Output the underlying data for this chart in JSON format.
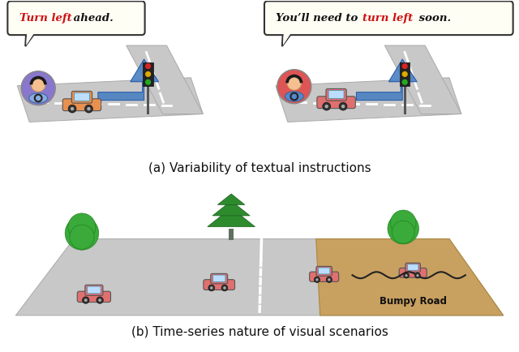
{
  "bg_color": "#ffffff",
  "fig_width": 6.4,
  "fig_height": 4.34,
  "caption_a": "(a) Variability of textual instructions",
  "caption_b": "(b) Time-series nature of visual scenarios",
  "speech1_red": "Turn left",
  "speech1_black": " ahead.",
  "speech2_black1": "You’ll need to ",
  "speech2_red": "turn left",
  "speech2_black2": " soon.",
  "bumpy_label": "Bumpy Road",
  "road_color": "#c8c8c8",
  "road_edge": "#aaaaaa",
  "bumpy_color": "#c8a060",
  "tree_green": "#3aaa3a",
  "tree_dark": "#1a7a1a",
  "pine_green": "#2d8b2d",
  "pine_dark": "#1a5a1a",
  "trunk_color": "#8B4513",
  "car_red": "#e07070",
  "car_orange": "#e89050",
  "arrow_color": "#4a80c0",
  "arrow_edge": "#2255aa",
  "speech_bg": "#fffef5",
  "speech_border": "#333333",
  "tl_pole": "#555555",
  "tl_box": "#222222",
  "tl_red": "#dd2222",
  "tl_yellow": "#ddaa00",
  "tl_green": "#22aa22",
  "avatar1_bg": "#8877cc",
  "avatar2_bg": "#dd5555",
  "skin": "#f5c090",
  "shirt1": "#88aadd",
  "shirt2": "#5588cc"
}
